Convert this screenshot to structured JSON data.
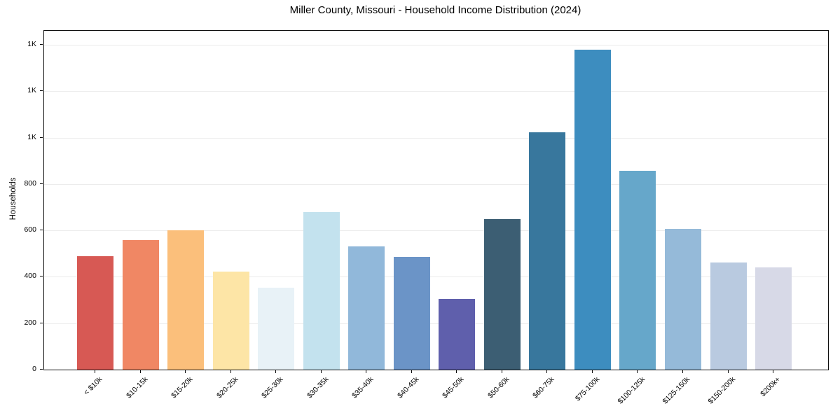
{
  "title": "Miller County, Missouri - Household Income Distribution (2024)",
  "chart_data": {
    "type": "bar",
    "title": "Miller County, Missouri - Household Income Distribution (2024)",
    "xlabel": "",
    "ylabel": "Households",
    "categories": [
      "< $10k",
      "$10-15k",
      "$15-20k",
      "$20-25k",
      "$25-30k",
      "$30-35k",
      "$35-40k",
      "$40-45k",
      "$45-50k",
      "$50-60k",
      "$60-75k",
      "$75-100k",
      "$100-125k",
      "$125-150k",
      "$150-200k",
      "$200k+"
    ],
    "values": [
      490,
      557,
      601,
      423,
      353,
      678,
      530,
      487,
      306,
      650,
      1024,
      1379,
      856,
      606,
      461,
      440
    ],
    "bar_colors": [
      "#d6544e",
      "#f0835f",
      "#fbbd77",
      "#fde4a3",
      "#e7f2f7",
      "#c1e1ed",
      "#8db6d9",
      "#6691c5",
      "#5a5aa9",
      "#36596e",
      "#32739a",
      "#3789bd",
      "#61a4c8",
      "#92b8d8",
      "#b7c8df",
      "#d6d8e6"
    ],
    "ylim": [
      0,
      1460
    ],
    "yticks": {
      "values": [
        0,
        200,
        400,
        600,
        800,
        1000,
        1200,
        1400
      ],
      "labels": [
        "0",
        "200",
        "400",
        "600",
        "800",
        "1K",
        "1K",
        "1K"
      ]
    },
    "grid": "horizontal",
    "legend": "none",
    "background_color": "#ffffff",
    "grid_color": "#ececec",
    "spine_color": "#0d0d0d"
  }
}
